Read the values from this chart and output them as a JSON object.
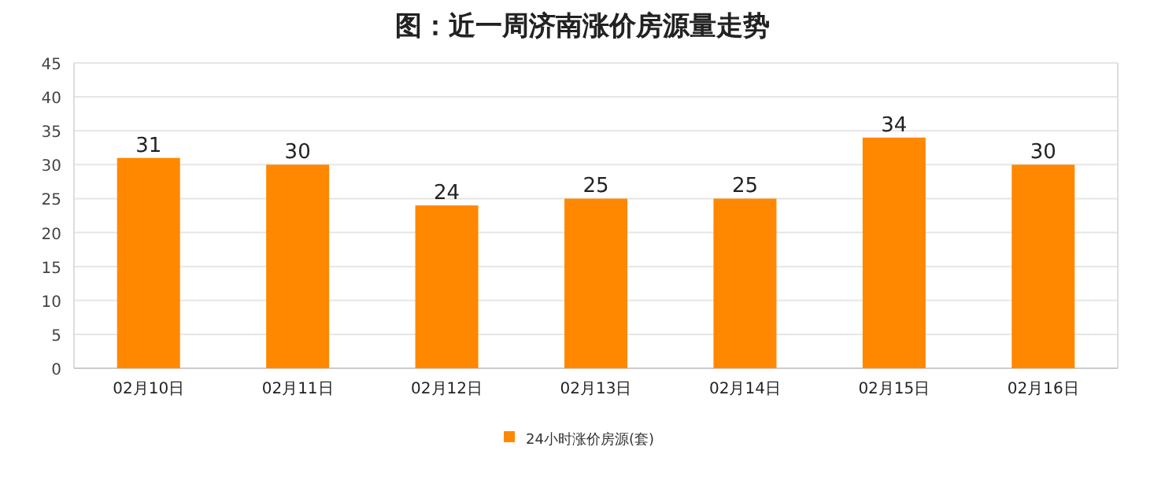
{
  "chart_data": {
    "type": "bar",
    "title": "图：近一周济南涨价房源量走势",
    "categories": [
      "02月10日",
      "02月11日",
      "02月12日",
      "02月13日",
      "02月14日",
      "02月15日",
      "02月16日"
    ],
    "series": [
      {
        "name": "24小时涨价房源(套)",
        "color": "#ff8800",
        "values": [
          31,
          30,
          24,
          25,
          25,
          34,
          30
        ]
      }
    ],
    "ylim": [
      0,
      45
    ],
    "yticks": [
      0,
      5,
      10,
      15,
      20,
      25,
      30,
      35,
      40,
      45
    ],
    "grid": "y",
    "legend": "bottom",
    "data_labels": true
  }
}
